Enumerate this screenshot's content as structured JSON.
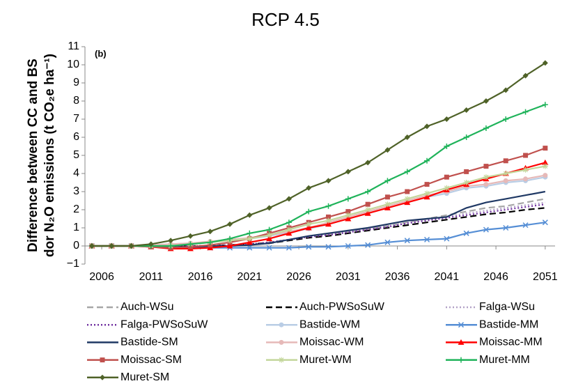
{
  "chart_data": {
    "type": "line",
    "title": "RCP 4.5",
    "ylabel": [
      "Difference between CC and BS",
      "dor N₂O emissions (t CO₂e ha⁻¹)"
    ],
    "annotation": "(b)",
    "x": [
      2005,
      2007,
      2009,
      2011,
      2013,
      2015,
      2017,
      2019,
      2021,
      2023,
      2025,
      2027,
      2029,
      2031,
      2033,
      2035,
      2037,
      2039,
      2041,
      2043,
      2045,
      2047,
      2049,
      2051
    ],
    "xlim": [
      2004.3,
      2052
    ],
    "xticks": [
      2006,
      2011,
      2016,
      2021,
      2026,
      2031,
      2036,
      2041,
      2046,
      2051
    ],
    "ylim": [
      -1,
      11
    ],
    "yticks": [
      {
        "value": -1,
        "label": "−1"
      },
      0,
      1,
      2,
      3,
      4,
      5,
      6,
      7,
      8,
      9,
      10,
      11
    ],
    "series": [
      {
        "name": "Auch-WSu",
        "color": "#a6a6a6",
        "dash": "dashed",
        "marker": "none",
        "values": [
          0,
          0,
          0,
          0,
          0,
          0,
          0,
          0.05,
          0.1,
          0.2,
          0.35,
          0.5,
          0.65,
          0.8,
          0.95,
          1.1,
          1.3,
          1.5,
          1.7,
          1.9,
          2.1,
          2.2,
          2.4,
          2.6
        ]
      },
      {
        "name": "Auch-PWSoSuW",
        "color": "#000000",
        "dash": "dashed",
        "marker": "none",
        "values": [
          0,
          0,
          0,
          0,
          0,
          0,
          0,
          0.05,
          0.1,
          0.15,
          0.3,
          0.45,
          0.55,
          0.7,
          0.85,
          1.0,
          1.15,
          1.3,
          1.45,
          1.6,
          1.75,
          1.85,
          2.0,
          2.1
        ]
      },
      {
        "name": "Falga-WSu",
        "color": "#b3a2c7",
        "dash": "dotted",
        "marker": "none",
        "values": [
          0,
          0,
          0,
          0,
          0,
          0,
          0,
          0.05,
          0.1,
          0.2,
          0.35,
          0.5,
          0.65,
          0.8,
          0.95,
          1.1,
          1.3,
          1.45,
          1.6,
          1.8,
          1.95,
          2.1,
          2.25,
          2.4
        ]
      },
      {
        "name": "Falga-PWSoSuW",
        "color": "#7030a0",
        "dash": "dotted",
        "marker": "none",
        "values": [
          0,
          0,
          0,
          0,
          0,
          0,
          0,
          0.05,
          0.1,
          0.2,
          0.35,
          0.5,
          0.6,
          0.75,
          0.9,
          1.05,
          1.25,
          1.4,
          1.55,
          1.7,
          1.85,
          2.0,
          2.15,
          2.3
        ]
      },
      {
        "name": "Bastide-WM",
        "color": "#b9cde5",
        "dash": "solid",
        "marker": "circle",
        "values": [
          0,
          0,
          0,
          0.05,
          0.1,
          0.15,
          0.2,
          0.3,
          0.4,
          0.55,
          0.75,
          0.95,
          1.2,
          1.5,
          1.8,
          2.1,
          2.4,
          2.7,
          2.9,
          3.2,
          3.3,
          3.5,
          3.6,
          3.8
        ]
      },
      {
        "name": "Bastide-MM",
        "color": "#558ed5",
        "dash": "solid",
        "marker": "x",
        "values": [
          0,
          0,
          0,
          0,
          -0.05,
          -0.1,
          -0.1,
          -0.1,
          -0.1,
          -0.1,
          -0.1,
          -0.05,
          -0.05,
          0,
          0.05,
          0.2,
          0.3,
          0.35,
          0.4,
          0.7,
          0.9,
          1.0,
          1.15,
          1.3
        ]
      },
      {
        "name": "Bastide-SM",
        "color": "#1f3864",
        "dash": "solid",
        "marker": "none",
        "values": [
          0,
          0,
          0,
          0,
          -0.05,
          -0.05,
          0,
          0,
          0.05,
          0.15,
          0.35,
          0.55,
          0.7,
          0.85,
          1.0,
          1.2,
          1.4,
          1.5,
          1.6,
          2.1,
          2.4,
          2.6,
          2.8,
          3.0
        ]
      },
      {
        "name": "Moissac-WM",
        "color": "#e6b9b8",
        "dash": "solid",
        "marker": "circle",
        "values": [
          0,
          0,
          0,
          0.05,
          0.1,
          0.15,
          0.25,
          0.35,
          0.45,
          0.6,
          0.8,
          1.0,
          1.3,
          1.6,
          1.9,
          2.2,
          2.5,
          2.8,
          3.0,
          3.3,
          3.4,
          3.6,
          3.7,
          3.9
        ]
      },
      {
        "name": "Moissac-MM",
        "color": "#ff0000",
        "dash": "solid",
        "marker": "triangle",
        "values": [
          0,
          0,
          0,
          -0.05,
          -0.15,
          -0.15,
          -0.1,
          0,
          0.2,
          0.4,
          0.7,
          1.0,
          1.2,
          1.5,
          1.8,
          2.1,
          2.4,
          2.7,
          3.1,
          3.4,
          3.7,
          4.0,
          4.3,
          4.6
        ]
      },
      {
        "name": "Moissac-SM",
        "color": "#c0504d",
        "dash": "solid",
        "marker": "square",
        "values": [
          0,
          0,
          0,
          -0.05,
          -0.1,
          -0.05,
          0.05,
          0.2,
          0.4,
          0.7,
          1.0,
          1.3,
          1.6,
          1.9,
          2.3,
          2.7,
          3.0,
          3.4,
          3.8,
          4.1,
          4.4,
          4.7,
          5.0,
          5.4
        ]
      },
      {
        "name": "Muret-WM",
        "color": "#c3d69b",
        "dash": "solid",
        "marker": "star",
        "values": [
          0,
          0,
          0,
          0,
          0,
          0.1,
          0.2,
          0.3,
          0.4,
          0.6,
          0.9,
          1.2,
          1.4,
          1.7,
          2.0,
          2.3,
          2.6,
          2.9,
          3.2,
          3.5,
          3.8,
          4.0,
          4.2,
          4.4
        ]
      },
      {
        "name": "Muret-MM",
        "color": "#1fb35a",
        "dash": "solid",
        "marker": "plus",
        "values": [
          0,
          0,
          0,
          0,
          0,
          0.1,
          0.2,
          0.4,
          0.7,
          0.9,
          1.3,
          1.9,
          2.2,
          2.6,
          3.0,
          3.6,
          4.1,
          4.7,
          5.5,
          6.0,
          6.5,
          7.0,
          7.4,
          7.8
        ]
      },
      {
        "name": "Muret-SM",
        "color": "#4f6228",
        "dash": "solid",
        "marker": "diamond",
        "values": [
          0,
          0,
          0,
          0.1,
          0.3,
          0.55,
          0.8,
          1.2,
          1.7,
          2.1,
          2.6,
          3.2,
          3.6,
          4.1,
          4.6,
          5.3,
          6.0,
          6.6,
          7.0,
          7.5,
          8.0,
          8.6,
          9.4,
          10.1
        ]
      }
    ]
  }
}
